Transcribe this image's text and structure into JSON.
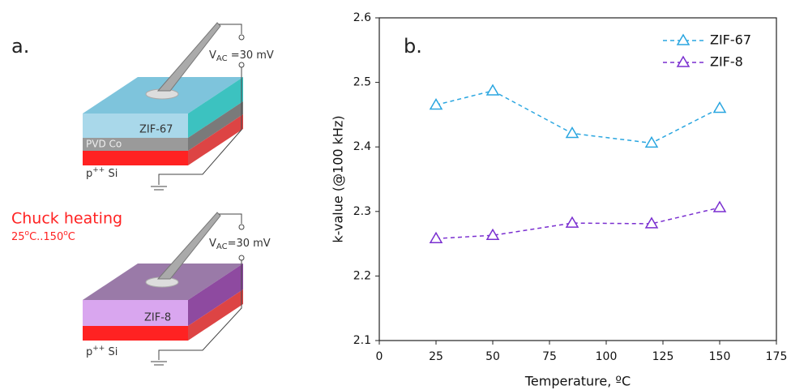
{
  "diagram": {
    "panel_label": "a.",
    "voltage_top": {
      "main": "V",
      "sub": "AC",
      "rest": " =30 mV"
    },
    "film_top": "ZIF-67",
    "metal": "PVD Co",
    "substrate_top": {
      "main": "p",
      "sup": "++",
      "rest": " Si"
    },
    "heating": "Chuck heating",
    "range": [
      "25",
      "o",
      "C..150",
      "o",
      "C"
    ],
    "voltage_bottom": {
      "main": "V",
      "sub": "AC",
      "rest": "=30 mV"
    },
    "film_bottom": "ZIF-8",
    "substrate_bottom": {
      "main": "p",
      "sup": "++",
      "rest": " Si"
    }
  },
  "chart_data": {
    "type": "line",
    "annotation": "b.",
    "x_label": "Temperature, ºC",
    "y_label": "k-value (@100 kHz)",
    "x": [
      25,
      50,
      85,
      120,
      150
    ],
    "series": [
      {
        "name": "ZIF-67",
        "color": "#2aa6e0",
        "values": [
          2.465,
          2.487,
          2.421,
          2.406,
          2.46
        ]
      },
      {
        "name": "ZIF-8",
        "color": "#7a2fd0",
        "values": [
          2.258,
          2.263,
          2.282,
          2.281,
          2.306
        ]
      }
    ],
    "xlim": [
      0,
      175
    ],
    "xticks": [
      0,
      25,
      50,
      75,
      100,
      125,
      150,
      175
    ],
    "ylim": [
      2.1,
      2.6
    ],
    "yticks": [
      2.1,
      2.2,
      2.3,
      2.4,
      2.5,
      2.6
    ],
    "legend": "upper right"
  }
}
